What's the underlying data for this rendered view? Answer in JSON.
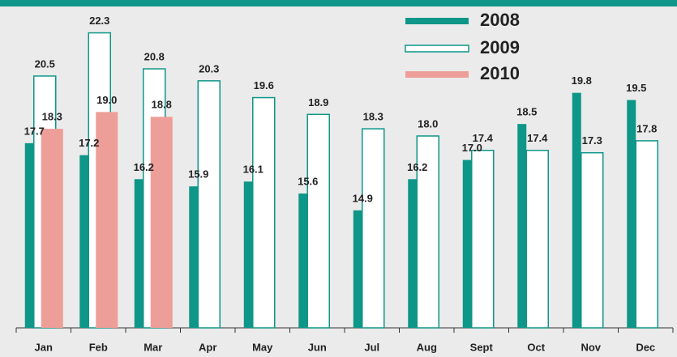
{
  "chart_data": {
    "type": "bar",
    "categories": [
      "Jan",
      "Feb",
      "Mar",
      "Apr",
      "May",
      "Jun",
      "Jul",
      "Aug",
      "Sept",
      "Oct",
      "Nov",
      "Dec"
    ],
    "series": [
      {
        "name": "2008",
        "color": "#0e9688",
        "values": [
          17.7,
          17.2,
          16.2,
          15.9,
          16.1,
          15.6,
          14.9,
          16.2,
          17.0,
          18.5,
          19.8,
          19.5
        ],
        "value_labels": [
          "17.7",
          "17.2",
          "16.2",
          "15.9",
          "16.1",
          "15.6",
          "14.9",
          "16.2",
          "17.0",
          "18.5",
          "19.8",
          "19.5"
        ]
      },
      {
        "name": "2009",
        "color": "#ffffff",
        "values": [
          20.5,
          22.3,
          20.8,
          20.3,
          19.6,
          18.9,
          18.3,
          18.0,
          17.4,
          17.4,
          17.3,
          17.8
        ],
        "value_labels": [
          "20.5",
          "22.3",
          "20.8",
          "20.3",
          "19.6",
          "18.9",
          "18.3",
          "18.0",
          "17.4",
          "17.4",
          "17.3",
          "17.8"
        ]
      },
      {
        "name": "2010",
        "color": "#ee9e98",
        "values": [
          18.3,
          19.0,
          18.8,
          null,
          null,
          null,
          null,
          null,
          null,
          null,
          null,
          null
        ],
        "value_labels": [
          "18.3",
          "19.0",
          "18.8",
          null,
          null,
          null,
          null,
          null,
          null,
          null,
          null,
          null
        ]
      }
    ],
    "ylim": [
      10,
      23.4
    ],
    "legend": "top-right"
  }
}
